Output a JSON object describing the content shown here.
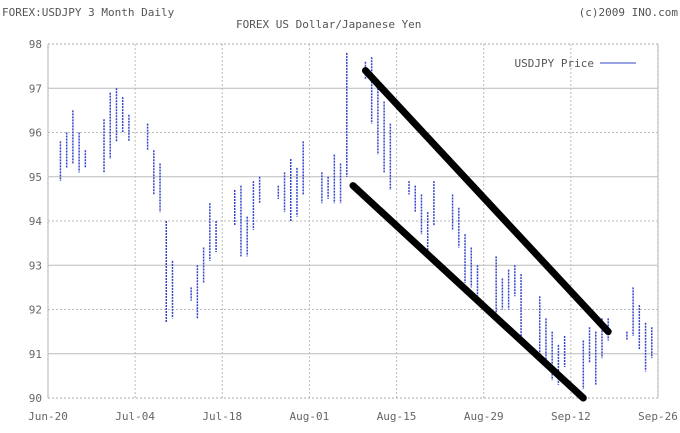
{
  "header": {
    "left_title": "FOREX:USDJPY 3 Month Daily",
    "center_title": "FOREX US Dollar/Japanese Yen",
    "copyright": "(c)2009 INO.com"
  },
  "chart_data": {
    "type": "bar",
    "subtype": "high-low daily bars",
    "title": "FOREX US Dollar/Japanese Yen",
    "ylim": [
      90,
      98
    ],
    "xlim": [
      "2009-06-20",
      "2009-09-26"
    ],
    "yticks": [
      "90",
      "91",
      "92",
      "93",
      "94",
      "95",
      "96",
      "97",
      "98"
    ],
    "xticks": [
      {
        "date": "2009-06-20",
        "label": "Jun-20"
      },
      {
        "date": "2009-07-04",
        "label": "Jul-04"
      },
      {
        "date": "2009-07-18",
        "label": "Jul-18"
      },
      {
        "date": "2009-08-01",
        "label": "Aug-01"
      },
      {
        "date": "2009-08-15",
        "label": "Aug-15"
      },
      {
        "date": "2009-08-29",
        "label": "Aug-29"
      },
      {
        "date": "2009-09-12",
        "label": "Sep-12"
      },
      {
        "date": "2009-09-26",
        "label": "Sep-26"
      }
    ],
    "grid": true,
    "legend": {
      "placement": "top-right",
      "entries": [
        {
          "name": "USDJPY Price",
          "color": "#3344cc"
        }
      ]
    },
    "series": [
      {
        "name": "USDJPY Price",
        "color": "#3344cc",
        "points": [
          [
            "2009-06-22",
            95.8,
            94.9
          ],
          [
            "2009-06-23",
            96.0,
            95.2
          ],
          [
            "2009-06-24",
            96.5,
            95.3
          ],
          [
            "2009-06-25",
            96.0,
            95.1
          ],
          [
            "2009-06-26",
            95.6,
            95.2
          ],
          [
            "2009-06-29",
            96.3,
            95.1
          ],
          [
            "2009-06-30",
            96.9,
            95.4
          ],
          [
            "2009-07-01",
            97.0,
            95.8
          ],
          [
            "2009-07-02",
            96.8,
            96.0
          ],
          [
            "2009-07-03",
            96.4,
            95.8
          ],
          [
            "2009-07-06",
            96.2,
            95.6
          ],
          [
            "2009-07-07",
            95.6,
            94.6
          ],
          [
            "2009-07-08",
            95.3,
            94.2
          ],
          [
            "2009-07-09",
            94.0,
            91.7
          ],
          [
            "2009-07-10",
            93.1,
            91.8
          ],
          [
            "2009-07-13",
            92.5,
            92.2
          ],
          [
            "2009-07-14",
            93.0,
            91.8
          ],
          [
            "2009-07-15",
            93.4,
            92.6
          ],
          [
            "2009-07-16",
            94.4,
            93.1
          ],
          [
            "2009-07-17",
            94.0,
            93.3
          ],
          [
            "2009-07-20",
            94.7,
            93.9
          ],
          [
            "2009-07-21",
            94.8,
            93.2
          ],
          [
            "2009-07-22",
            94.1,
            93.2
          ],
          [
            "2009-07-23",
            94.9,
            93.8
          ],
          [
            "2009-07-24",
            95.0,
            94.4
          ],
          [
            "2009-07-27",
            94.8,
            94.5
          ],
          [
            "2009-07-28",
            95.1,
            94.2
          ],
          [
            "2009-07-29",
            95.4,
            94.0
          ],
          [
            "2009-07-30",
            95.2,
            94.1
          ],
          [
            "2009-07-31",
            95.8,
            94.6
          ],
          [
            "2009-08-03",
            95.1,
            94.4
          ],
          [
            "2009-08-04",
            95.0,
            94.5
          ],
          [
            "2009-08-05",
            95.5,
            94.4
          ],
          [
            "2009-08-06",
            95.3,
            94.4
          ],
          [
            "2009-08-07",
            97.8,
            95.0
          ],
          [
            "2009-08-10",
            97.6,
            97.2
          ],
          [
            "2009-08-11",
            97.7,
            96.2
          ],
          [
            "2009-08-12",
            97.2,
            95.5
          ],
          [
            "2009-08-13",
            96.7,
            95.1
          ],
          [
            "2009-08-14",
            96.2,
            94.7
          ],
          [
            "2009-08-17",
            94.9,
            94.6
          ],
          [
            "2009-08-18",
            94.8,
            94.2
          ],
          [
            "2009-08-19",
            94.6,
            93.7
          ],
          [
            "2009-08-20",
            94.2,
            93.3
          ],
          [
            "2009-08-21",
            94.9,
            93.9
          ],
          [
            "2009-08-24",
            94.6,
            93.8
          ],
          [
            "2009-08-25",
            94.3,
            93.4
          ],
          [
            "2009-08-26",
            93.7,
            92.6
          ],
          [
            "2009-08-27",
            93.4,
            92.5
          ],
          [
            "2009-08-28",
            93.0,
            92.3
          ],
          [
            "2009-08-31",
            93.2,
            91.9
          ],
          [
            "2009-09-01",
            92.7,
            92.0
          ],
          [
            "2009-09-02",
            92.9,
            92.0
          ],
          [
            "2009-09-03",
            93.0,
            92.3
          ],
          [
            "2009-09-04",
            92.8,
            91.3
          ],
          [
            "2009-09-07",
            92.3,
            91.0
          ],
          [
            "2009-09-08",
            91.8,
            90.8
          ],
          [
            "2009-09-09",
            91.5,
            90.4
          ],
          [
            "2009-09-10",
            91.2,
            90.3
          ],
          [
            "2009-09-11",
            91.4,
            90.7
          ],
          [
            "2009-09-14",
            91.3,
            90.2
          ],
          [
            "2009-09-15",
            91.6,
            90.8
          ],
          [
            "2009-09-16",
            91.5,
            90.3
          ],
          [
            "2009-09-17",
            91.8,
            90.9
          ],
          [
            "2009-09-18",
            91.8,
            91.3
          ],
          [
            "2009-09-21",
            91.5,
            91.3
          ],
          [
            "2009-09-22",
            92.5,
            91.4
          ],
          [
            "2009-09-23",
            92.1,
            91.1
          ],
          [
            "2009-09-24",
            91.7,
            90.6
          ],
          [
            "2009-09-25",
            91.6,
            90.9
          ]
        ]
      }
    ],
    "annotations": [
      {
        "type": "trendline",
        "color": "#000000",
        "from": [
          "2009-08-10",
          97.4
        ],
        "to": [
          "2009-09-18",
          91.5
        ]
      },
      {
        "type": "trendline",
        "color": "#000000",
        "from": [
          "2009-08-08",
          94.8
        ],
        "to": [
          "2009-09-14",
          90.0
        ]
      }
    ]
  }
}
